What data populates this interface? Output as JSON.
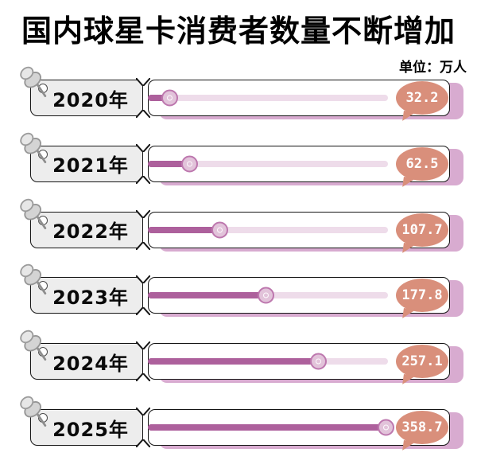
{
  "title": "国内球星卡消费者数量不断增加",
  "unit_label": "单位：万人",
  "colors": {
    "bar_fill": "#ad609c",
    "bar_track": "#eedcea",
    "knob_border": "#bd77ae",
    "knob_fill": "#e2c3da",
    "bubble": "#d98f7b",
    "bubble_text": "#ffffff",
    "card_shadow": "#d8abd0",
    "label_bg": "#ededed",
    "outline": "#151515"
  },
  "chart_data": {
    "type": "bar",
    "orientation": "horizontal",
    "title": "国内球星卡消费者数量不断增加",
    "unit": "万人",
    "categories": [
      "2020年",
      "2021年",
      "2022年",
      "2023年",
      "2024年",
      "2025年"
    ],
    "values": [
      32.2,
      62.5,
      107.7,
      177.8,
      257.1,
      358.7
    ],
    "value_labels": [
      "32.2",
      "62.5",
      "107.7",
      "177.8",
      "257.1",
      "358.7"
    ],
    "xlim": [
      0,
      360
    ],
    "grid": false,
    "legend": false
  }
}
